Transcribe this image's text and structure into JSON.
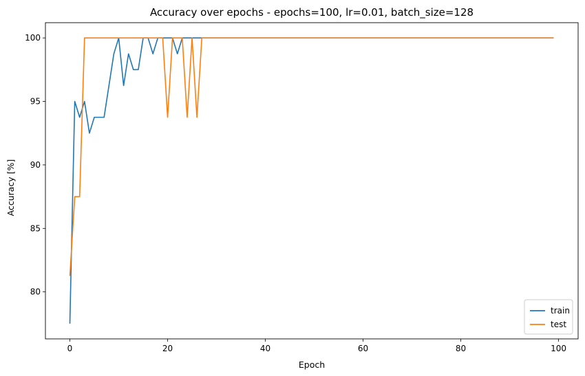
{
  "chart_data": {
    "type": "line",
    "title": "Accuracy over epochs - epochs=100, lr=0.01, batch_size=128",
    "xlabel": "Epoch",
    "ylabel": "Accuracy [%]",
    "xlim": [
      -5,
      104
    ],
    "ylim": [
      76.3,
      101.2
    ],
    "xticks": [
      0,
      20,
      40,
      60,
      80,
      100
    ],
    "yticks": [
      80,
      85,
      90,
      95,
      100
    ],
    "grid": false,
    "legend_position": "lower-right",
    "series": [
      {
        "name": "train",
        "color": "#1f77b4",
        "points": [
          [
            0,
            77.5
          ],
          [
            1,
            95.0
          ],
          [
            2,
            93.75
          ],
          [
            3,
            95.0
          ],
          [
            4,
            92.5
          ],
          [
            5,
            93.75
          ],
          [
            6,
            93.75
          ],
          [
            7,
            93.75
          ],
          [
            8,
            96.25
          ],
          [
            9,
            98.75
          ],
          [
            10,
            100.0
          ],
          [
            11,
            96.25
          ],
          [
            12,
            98.75
          ],
          [
            13,
            97.5
          ],
          [
            14,
            97.5
          ],
          [
            15,
            100.0
          ],
          [
            16,
            100.0
          ],
          [
            17,
            98.75
          ],
          [
            18,
            100.0
          ],
          [
            19,
            100.0
          ],
          [
            20,
            100.0
          ],
          [
            21,
            100.0
          ],
          [
            22,
            98.75
          ],
          [
            23,
            100.0
          ],
          [
            24,
            100.0
          ],
          [
            25,
            100.0
          ],
          [
            26,
            100.0
          ],
          [
            27,
            100.0
          ],
          [
            99,
            100.0
          ]
        ]
      },
      {
        "name": "test",
        "color": "#ff7f0e",
        "points": [
          [
            0,
            81.25
          ],
          [
            1,
            87.5
          ],
          [
            2,
            87.5
          ],
          [
            3,
            100.0
          ],
          [
            4,
            100.0
          ],
          [
            19,
            100.0
          ],
          [
            20,
            93.75
          ],
          [
            21,
            100.0
          ],
          [
            22,
            100.0
          ],
          [
            23,
            100.0
          ],
          [
            24,
            93.75
          ],
          [
            25,
            100.0
          ],
          [
            26,
            93.75
          ],
          [
            27,
            100.0
          ],
          [
            99,
            100.0
          ]
        ]
      }
    ]
  }
}
